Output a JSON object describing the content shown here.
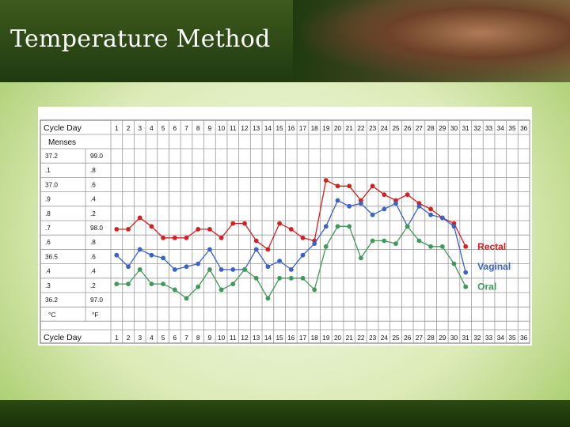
{
  "slide": {
    "title": "Temperature Method"
  },
  "colors": {
    "rectal": "#d42020",
    "vaginal": "#3a63c8",
    "oral": "#3f9a5a",
    "grid": "#9a9a9a"
  },
  "chart_data": {
    "type": "line",
    "row_header_top": "Cycle Day",
    "row_header_bottom": "Cycle Day",
    "menses_label": "Menses",
    "x": [
      1,
      2,
      3,
      4,
      5,
      6,
      7,
      8,
      9,
      10,
      11,
      12,
      13,
      14,
      15,
      16,
      17,
      18,
      19,
      20,
      21,
      22,
      23,
      24,
      25,
      26,
      27,
      28,
      29,
      30,
      31,
      32,
      33,
      34,
      35,
      36
    ],
    "day_labels": [
      "1",
      "2",
      "3",
      "4",
      "5",
      "6",
      "7",
      "8",
      "9",
      "10",
      "11",
      "12",
      "13",
      "14",
      "15",
      "16",
      "17",
      "18",
      "19",
      "20",
      "21",
      "22",
      "23",
      "24",
      "25",
      "26",
      "27",
      "28",
      "29",
      "30",
      "31",
      "32",
      "33",
      "34",
      "35",
      "36"
    ],
    "celsius_labels": [
      "37.2",
      ".1",
      "37.0",
      ".9",
      ".8",
      ".7",
      ".6",
      "36.5",
      ".4",
      ".3",
      "36.2"
    ],
    "fahrenheit_labels": [
      "99.0",
      ".8",
      ".6",
      ".4",
      ".2",
      "98.0",
      ".8",
      ".6",
      ".4",
      ".2",
      "97.0"
    ],
    "unit_c": "°C",
    "unit_f": "°F",
    "ylabel": "",
    "ylim_f": [
      97.0,
      99.0
    ],
    "series": [
      {
        "name": "Rectal",
        "color_key": "rectal",
        "values_f": [
          97.98,
          97.98,
          98.14,
          98.02,
          97.86,
          97.86,
          97.86,
          97.98,
          97.98,
          97.86,
          98.06,
          98.06,
          97.82,
          97.7,
          98.06,
          97.98,
          97.86,
          97.82,
          98.66,
          98.58,
          98.58,
          98.38,
          98.58,
          98.46,
          98.38,
          98.46,
          98.34,
          98.26,
          98.14,
          98.06,
          97.74
        ],
        "label_f": 97.74
      },
      {
        "name": "Vaginal",
        "color_key": "vaginal",
        "values_f": [
          97.62,
          97.46,
          97.7,
          97.62,
          97.58,
          97.42,
          97.46,
          97.5,
          97.7,
          97.42,
          97.42,
          97.42,
          97.7,
          97.46,
          97.54,
          97.42,
          97.62,
          97.78,
          98.02,
          98.38,
          98.3,
          98.34,
          98.18,
          98.26,
          98.34,
          98.02,
          98.3,
          98.18,
          98.14,
          98.02,
          97.38
        ],
        "label_f": 97.46
      },
      {
        "name": "Oral",
        "color_key": "oral",
        "values_f": [
          97.22,
          97.22,
          97.42,
          97.22,
          97.22,
          97.14,
          97.02,
          97.18,
          97.42,
          97.14,
          97.22,
          97.42,
          97.3,
          97.02,
          97.3,
          97.3,
          97.3,
          97.14,
          97.74,
          98.02,
          98.02,
          97.58,
          97.82,
          97.82,
          97.78,
          98.02,
          97.82,
          97.74,
          97.74,
          97.5,
          97.18
        ],
        "label_f": 97.18
      }
    ],
    "grid": true,
    "legend": "right, next to line ends"
  }
}
